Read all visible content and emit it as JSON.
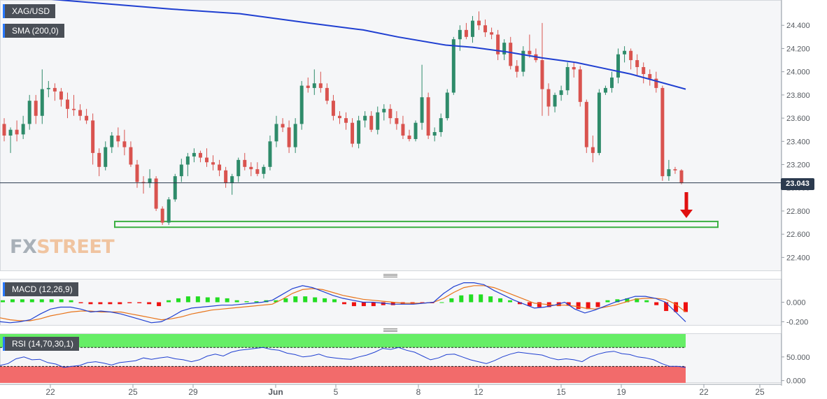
{
  "chart_data": [
    {
      "type": "candlestick",
      "symbol": "XAG/USD",
      "legend": [
        "XAG/USD",
        "SMA (200,0)"
      ],
      "ylim": [
        22.3,
        24.6
      ],
      "yticks": [
        "24.400",
        "24.200",
        "24.000",
        "23.800",
        "23.600",
        "23.400",
        "23.200",
        "23.000",
        "22.800",
        "22.600",
        "22.400"
      ],
      "last_price": "23.043",
      "series_colors": {
        "up": "#2e8b6a",
        "down": "#d9534f",
        "sma": "#1f3fd1",
        "support": "#3cb043",
        "arrow": "#e01010"
      },
      "support_zone": [
        22.66,
        22.71
      ],
      "ohlc": [
        [
          23.55,
          23.6,
          23.4,
          23.45
        ],
        [
          23.45,
          23.52,
          23.3,
          23.5
        ],
        [
          23.5,
          23.58,
          23.4,
          23.46
        ],
        [
          23.46,
          23.62,
          23.42,
          23.55
        ],
        [
          23.55,
          23.8,
          23.5,
          23.75
        ],
        [
          23.75,
          23.8,
          23.55,
          23.62
        ],
        [
          23.62,
          24.02,
          23.55,
          23.85
        ],
        [
          23.85,
          23.92,
          23.78,
          23.86
        ],
        [
          23.86,
          23.9,
          23.75,
          23.83
        ],
        [
          23.83,
          23.86,
          23.7,
          23.76
        ],
        [
          23.76,
          23.82,
          23.6,
          23.68
        ],
        [
          23.68,
          23.8,
          23.62,
          23.67
        ],
        [
          23.67,
          23.72,
          23.58,
          23.62
        ],
        [
          23.62,
          23.68,
          23.55,
          23.58
        ],
        [
          23.58,
          23.64,
          23.2,
          23.3
        ],
        [
          23.3,
          23.34,
          23.1,
          23.18
        ],
        [
          23.18,
          23.4,
          23.15,
          23.35
        ],
        [
          23.35,
          23.48,
          23.3,
          23.45
        ],
        [
          23.45,
          23.52,
          23.35,
          23.4
        ],
        [
          23.4,
          23.5,
          23.28,
          23.35
        ],
        [
          23.35,
          23.4,
          23.18,
          23.2
        ],
        [
          23.2,
          23.24,
          23.0,
          23.05
        ],
        [
          23.05,
          23.1,
          22.95,
          23.04
        ],
        [
          23.04,
          23.16,
          23.0,
          23.08
        ],
        [
          23.08,
          23.1,
          22.8,
          22.82
        ],
        [
          22.82,
          22.84,
          22.68,
          22.7
        ],
        [
          22.7,
          22.92,
          22.68,
          22.9
        ],
        [
          22.9,
          23.12,
          22.88,
          23.1
        ],
        [
          23.1,
          23.25,
          23.05,
          23.2
        ],
        [
          23.2,
          23.3,
          23.1,
          23.27
        ],
        [
          23.27,
          23.34,
          23.22,
          23.3
        ],
        [
          23.3,
          23.32,
          23.22,
          23.26
        ],
        [
          23.26,
          23.34,
          23.18,
          23.22
        ],
        [
          23.22,
          23.28,
          23.15,
          23.2
        ],
        [
          23.2,
          23.24,
          23.1,
          23.15
        ],
        [
          23.15,
          23.18,
          23.0,
          23.04
        ],
        [
          23.04,
          23.12,
          22.94,
          23.1
        ],
        [
          23.1,
          23.26,
          23.05,
          23.24
        ],
        [
          23.24,
          23.3,
          23.15,
          23.18
        ],
        [
          23.18,
          23.22,
          23.1,
          23.16
        ],
        [
          23.16,
          23.22,
          23.1,
          23.12
        ],
        [
          23.12,
          23.2,
          23.08,
          23.18
        ],
        [
          23.18,
          23.45,
          23.15,
          23.4
        ],
        [
          23.4,
          23.62,
          23.35,
          23.55
        ],
        [
          23.55,
          23.6,
          23.48,
          23.52
        ],
        [
          23.52,
          23.58,
          23.3,
          23.35
        ],
        [
          23.35,
          23.6,
          23.3,
          23.55
        ],
        [
          23.55,
          23.92,
          23.5,
          23.88
        ],
        [
          23.88,
          23.95,
          23.82,
          23.86
        ],
        [
          23.86,
          24.02,
          23.8,
          23.9
        ],
        [
          23.9,
          24.0,
          23.82,
          23.86
        ],
        [
          23.86,
          23.9,
          23.72,
          23.75
        ],
        [
          23.75,
          23.8,
          23.58,
          23.62
        ],
        [
          23.62,
          23.66,
          23.55,
          23.6
        ],
        [
          23.6,
          23.65,
          23.5,
          23.56
        ],
        [
          23.56,
          23.6,
          23.35,
          23.38
        ],
        [
          23.38,
          23.62,
          23.34,
          23.58
        ],
        [
          23.58,
          23.66,
          23.52,
          23.62
        ],
        [
          23.62,
          23.66,
          23.48,
          23.5
        ],
        [
          23.5,
          23.7,
          23.46,
          23.65
        ],
        [
          23.65,
          23.72,
          23.58,
          23.68
        ],
        [
          23.68,
          23.72,
          23.55,
          23.6
        ],
        [
          23.6,
          23.66,
          23.5,
          23.55
        ],
        [
          23.55,
          23.62,
          23.42,
          23.45
        ],
        [
          23.45,
          23.5,
          23.4,
          23.42
        ],
        [
          23.42,
          23.58,
          23.4,
          23.56
        ],
        [
          23.56,
          24.06,
          23.5,
          23.78
        ],
        [
          23.78,
          23.82,
          23.42,
          23.45
        ],
        [
          23.45,
          23.52,
          23.4,
          23.48
        ],
        [
          23.48,
          23.64,
          23.44,
          23.6
        ],
        [
          23.6,
          23.85,
          23.58,
          23.82
        ],
        [
          23.82,
          24.3,
          23.8,
          24.28
        ],
        [
          24.28,
          24.4,
          24.18,
          24.36
        ],
        [
          24.36,
          24.42,
          24.28,
          24.3
        ],
        [
          24.3,
          24.48,
          24.25,
          24.44
        ],
        [
          24.44,
          24.52,
          24.36,
          24.4
        ],
        [
          24.4,
          24.45,
          24.3,
          24.34
        ],
        [
          24.34,
          24.38,
          24.28,
          24.32
        ],
        [
          24.32,
          24.36,
          24.1,
          24.15
        ],
        [
          24.15,
          24.28,
          24.1,
          24.25
        ],
        [
          24.25,
          24.3,
          24.02,
          24.05
        ],
        [
          24.05,
          24.1,
          23.95,
          24.0
        ],
        [
          24.0,
          24.22,
          23.96,
          24.18
        ],
        [
          24.18,
          24.32,
          24.12,
          24.15
        ],
        [
          24.15,
          24.2,
          24.08,
          24.1
        ],
        [
          24.1,
          24.42,
          23.62,
          23.85
        ],
        [
          23.85,
          23.9,
          23.62,
          23.7
        ],
        [
          23.7,
          23.82,
          23.65,
          23.8
        ],
        [
          23.8,
          23.88,
          23.75,
          23.84
        ],
        [
          23.84,
          24.08,
          23.8,
          24.04
        ],
        [
          24.04,
          24.08,
          23.95,
          24.02
        ],
        [
          24.02,
          24.05,
          23.7,
          23.74
        ],
        [
          23.74,
          23.76,
          23.3,
          23.35
        ],
        [
          23.35,
          23.45,
          23.22,
          23.3
        ],
        [
          23.3,
          23.85,
          23.28,
          23.82
        ],
        [
          23.82,
          23.88,
          23.8,
          23.86
        ],
        [
          23.86,
          24.0,
          23.82,
          23.95
        ],
        [
          23.95,
          24.2,
          23.9,
          24.15
        ],
        [
          24.15,
          24.22,
          24.08,
          24.18
        ],
        [
          24.18,
          24.2,
          24.02,
          24.1
        ],
        [
          24.1,
          24.15,
          23.96,
          24.04
        ],
        [
          24.04,
          24.08,
          23.9,
          23.98
        ],
        [
          23.98,
          24.02,
          23.88,
          23.94
        ],
        [
          23.94,
          24.0,
          23.82,
          23.86
        ],
        [
          23.86,
          23.88,
          23.06,
          23.1
        ],
        [
          23.1,
          23.24,
          23.06,
          23.16
        ],
        [
          23.16,
          23.18,
          23.12,
          23.15
        ],
        [
          23.15,
          23.16,
          23.03,
          23.04
        ]
      ],
      "sma": [
        [
          0.0,
          24.66
        ],
        [
          0.25,
          24.54
        ],
        [
          0.35,
          24.5
        ],
        [
          0.45,
          24.42
        ],
        [
          0.53,
          24.36
        ],
        [
          0.58,
          24.3
        ],
        [
          0.65,
          24.23
        ],
        [
          0.69,
          24.21
        ],
        [
          0.74,
          24.17
        ],
        [
          0.79,
          24.12
        ],
        [
          0.84,
          24.08
        ],
        [
          0.88,
          24.03
        ],
        [
          0.92,
          23.98
        ],
        [
          1.0,
          23.85
        ]
      ]
    },
    {
      "type": "line",
      "indicator": "MACD (12,26,9)",
      "ylim": [
        -0.24,
        0.24
      ],
      "yticks": [
        "0.000",
        "-0.200"
      ],
      "series_colors": {
        "macd": "#1f3fd1",
        "signal": "#e8741a",
        "hist_up": "#22dd22",
        "hist_down": "#ee1111"
      },
      "macd": [
        -0.2,
        -0.21,
        -0.2,
        -0.18,
        -0.12,
        -0.07,
        -0.05,
        -0.05,
        -0.07,
        -0.1,
        -0.09,
        -0.1,
        -0.12,
        -0.15,
        -0.18,
        -0.21,
        -0.2,
        -0.15,
        -0.09,
        -0.06,
        -0.05,
        -0.04,
        -0.03,
        -0.03,
        -0.02,
        -0.01,
        0.0,
        0.02,
        0.08,
        0.14,
        0.17,
        0.15,
        0.11,
        0.07,
        0.04,
        0.02,
        0.0,
        0.0,
        -0.01,
        -0.02,
        -0.02,
        -0.02,
        -0.01,
        0.0,
        0.09,
        0.16,
        0.2,
        0.2,
        0.18,
        0.12,
        0.07,
        0.02,
        -0.02,
        -0.06,
        -0.05,
        -0.03,
        0.0,
        -0.07,
        -0.11,
        -0.08,
        -0.04,
        0.0,
        0.03,
        0.06,
        0.06,
        0.04,
        0.0,
        -0.1,
        -0.2
      ],
      "signal": [
        -0.16,
        -0.18,
        -0.19,
        -0.19,
        -0.17,
        -0.14,
        -0.12,
        -0.1,
        -0.09,
        -0.09,
        -0.1,
        -0.1,
        -0.1,
        -0.12,
        -0.14,
        -0.16,
        -0.18,
        -0.17,
        -0.15,
        -0.12,
        -0.1,
        -0.08,
        -0.07,
        -0.06,
        -0.05,
        -0.04,
        -0.03,
        -0.02,
        0.03,
        0.09,
        0.13,
        0.14,
        0.13,
        0.1,
        0.07,
        0.05,
        0.03,
        0.02,
        0.01,
        0.0,
        -0.01,
        -0.01,
        -0.01,
        0.0,
        0.04,
        0.1,
        0.15,
        0.17,
        0.17,
        0.15,
        0.11,
        0.07,
        0.03,
        -0.01,
        -0.02,
        -0.03,
        -0.03,
        -0.04,
        -0.06,
        -0.07,
        -0.05,
        -0.03,
        0.0,
        0.03,
        0.04,
        0.04,
        0.03,
        -0.02,
        -0.1
      ],
      "histogram": [
        0.02,
        0.03,
        0.03,
        0.03,
        0.03,
        0.03,
        0.03,
        0.02,
        -0.01,
        -0.02,
        -0.02,
        -0.02,
        -0.02,
        -0.01,
        -0.01,
        -0.02,
        -0.04,
        0.02,
        0.04,
        0.06,
        0.06,
        0.05,
        0.05,
        0.04,
        0.02,
        0.01,
        0.01,
        0.02,
        0.02,
        0.04,
        0.06,
        0.06,
        0.05,
        0.04,
        0.03,
        -0.02,
        -0.04,
        -0.04,
        -0.04,
        -0.03,
        -0.03,
        -0.02,
        -0.02,
        -0.01,
        -0.01,
        0.0,
        0.04,
        0.07,
        0.08,
        0.08,
        0.06,
        0.04,
        0.02,
        -0.02,
        -0.04,
        -0.05,
        -0.05,
        -0.04,
        -0.03,
        -0.07,
        -0.07,
        -0.05,
        0.02,
        0.03,
        0.04,
        0.04,
        0.02,
        -0.03,
        -0.09,
        -0.1,
        -0.1
      ]
    },
    {
      "type": "line",
      "indicator": "RSI (14,70,30,1)",
      "ylim": [
        -5,
        100
      ],
      "yticks": [
        "50.000",
        "0.000"
      ],
      "bands": {
        "overbought": 70,
        "oversold": 30
      },
      "series_colors": {
        "rsi": "#1f3fd1",
        "overbought_band": "#66ee66",
        "oversold_band": "#f26b6b"
      },
      "rsi": [
        32,
        36,
        46,
        50,
        44,
        45,
        38,
        35,
        28,
        30,
        32,
        38,
        40,
        37,
        33,
        38,
        40,
        42,
        48,
        45,
        48,
        50,
        46,
        44,
        40,
        44,
        52,
        56,
        52,
        60,
        64,
        66,
        68,
        70,
        66,
        64,
        58,
        55,
        50,
        52,
        56,
        50,
        48,
        46,
        45,
        50,
        54,
        60,
        68,
        66,
        70,
        64,
        60,
        52,
        44,
        48,
        55,
        56,
        50,
        44,
        40,
        36,
        42,
        50,
        56,
        60,
        58,
        56,
        54,
        48,
        44,
        46,
        44,
        40,
        50,
        56,
        60,
        62,
        57,
        55,
        50,
        48,
        44,
        36,
        30,
        30,
        28
      ]
    }
  ],
  "xaxis": {
    "ticks": [
      "22",
      "25",
      "29",
      "Jun",
      "5",
      "8",
      "12",
      "15",
      "19",
      "22",
      "25"
    ]
  },
  "watermark": {
    "part1": "FX",
    "part2": "STREET"
  }
}
